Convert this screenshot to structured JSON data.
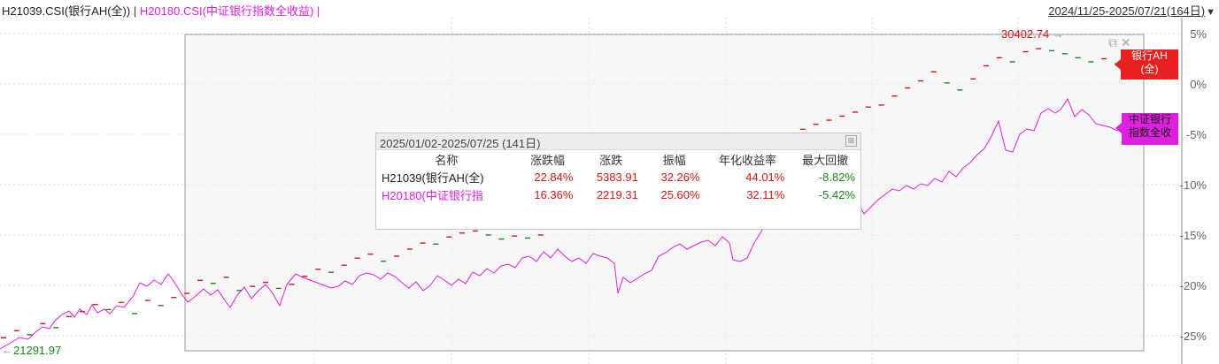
{
  "header": {
    "series1_label": "H21039.CSI(银行AH(全))",
    "separator": " | ",
    "series2_label": "H20180.CSI(中证银行指数全收益)",
    "trailing_sep": " |",
    "date_range": "2024/11/25-2025/07/21(164日)",
    "dropdown_icon": "triangle-down-icon"
  },
  "markers": {
    "high_value": "30402.74",
    "low_value": "21291.97"
  },
  "tags": {
    "series1_line1": "银行AH",
    "series1_line2": "(全)",
    "series2_line1": "中证银行",
    "series2_line2": "指数全收"
  },
  "tooltip": {
    "title": "2025/01/02-2025/07/25 (141日)",
    "columns": [
      "名称",
      "涨跌幅",
      "涨跌",
      "振幅",
      "年化收益率",
      "最大回撤"
    ],
    "rows": [
      {
        "name": "H21039(银行AH(全)",
        "change_pct": "22.84%",
        "change": "5383.91",
        "amplitude": "32.26%",
        "annual": "44.01%",
        "drawdown": "-8.82%"
      },
      {
        "name": "H20180(中证银行指",
        "change_pct": "16.36%",
        "change": "2219.31",
        "amplitude": "25.60%",
        "annual": "32.11%",
        "drawdown": "-5.42%"
      }
    ]
  },
  "y_axis": [
    "5%",
    "0%",
    "-5%",
    "-10%",
    "-15%",
    "-20%",
    "-25%"
  ],
  "colors": {
    "up": "#d41818",
    "down": "#1a8a1a",
    "series2": "#e020e0",
    "tag1_bg": "#e82020"
  },
  "chart_data": {
    "type": "line",
    "title": "",
    "x_range": [
      "2024/11/25",
      "2025/07/21"
    ],
    "y_unit": "%",
    "ylim": [
      -25,
      5
    ],
    "series": [
      {
        "name": "H21039.CSI(银行AH(全))",
        "values": [
          -25.2,
          -24.5,
          -24.9,
          -23.8,
          -24.2,
          -23.1,
          -22.6,
          -21.9,
          -22.4,
          -21.7,
          -22.8,
          -21.5,
          -22.0,
          -21.2,
          -20.8,
          -19.5,
          -19.8,
          -19.2,
          -20.5,
          -20.1,
          -19.7,
          -20.3,
          -19.9,
          -19.1,
          -18.4,
          -18.7,
          -18.0,
          -17.3,
          -16.9,
          -17.6,
          -17.1,
          -16.4,
          -15.8,
          -15.9,
          -15.2,
          -14.8,
          -14.6,
          -15.0,
          -15.4,
          -15.1,
          -15.3,
          -15.0,
          -13.8,
          -13.2,
          -13.6,
          -12.8,
          -12.3,
          -11.9,
          -12.4,
          -11.6,
          -10.9,
          -10.2,
          -9.5,
          -8.8,
          -8.2,
          -7.5,
          -7.8,
          -7.1,
          -5.6,
          -5.2,
          -4.9,
          -4.5,
          -4.0,
          -3.6,
          -3.2,
          -2.8,
          -2.3,
          -2.1,
          -1.2,
          -0.4,
          0.3,
          1.2,
          0.1,
          -0.6,
          0.5,
          1.8,
          2.6,
          2.2,
          3.2,
          3.5,
          3.3,
          3.0,
          2.6,
          2.2,
          2.5,
          2.0
        ]
      },
      {
        "name": "H20180.CSI(中证银行指数全收益)",
        "values": []
      }
    ]
  }
}
